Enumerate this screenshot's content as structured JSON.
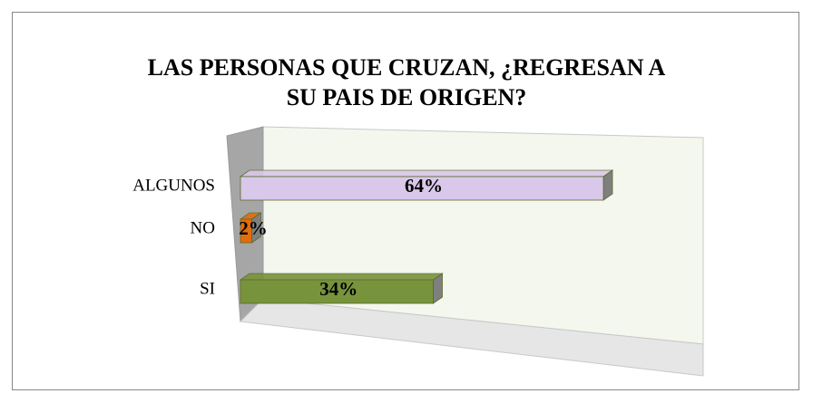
{
  "chart_data": {
    "type": "bar3d_horizontal",
    "title": "LAS PERSONAS QUE CRUZAN, ¿REGRESAN A SU PAIS DE ORIGEN?",
    "categories": [
      "ALGUNOS",
      "NO",
      "SI"
    ],
    "values": [
      64,
      2,
      34
    ],
    "value_labels": [
      "64%",
      "2%",
      "34%"
    ],
    "colors": [
      "#d9c8ea",
      "#e46c0a",
      "#77933c"
    ],
    "xlim": [
      0,
      80
    ]
  }
}
